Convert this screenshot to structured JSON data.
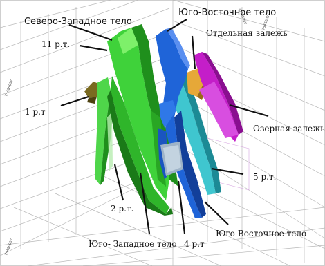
{
  "labels": {
    "nw_body": "Северо-Западное тело",
    "se_body_top": "Юго-Восточное тело",
    "separate_deposit": "Отдельная залежь",
    "lake_deposit": "Озерная залежь",
    "ore_body_11": "11 р.т.",
    "ore_body_1": "1 р.т",
    "ore_body_2": "2 р.т.",
    "ore_body_4": "4 р.т",
    "ore_body_5": "5 р.т.",
    "sw_body": "Юго- Западное тело",
    "se_body_bottom": "Юго-Восточное тело"
  },
  "axis_ticks": {
    "top_right": "7546500Y",
    "right": "7546000Y",
    "left": "7546500Y",
    "bottom_left": "7546000Y"
  },
  "colors": {
    "green": "#3fd23a",
    "green_dark": "#1f8f1c",
    "blue": "#1f64d8",
    "blue_dark": "#123f9a",
    "cyan": "#3fc6cf",
    "magenta": "#c41ec9",
    "orange": "#e0a030",
    "olive": "#7a6a20",
    "grid": "#b8b8b8"
  }
}
